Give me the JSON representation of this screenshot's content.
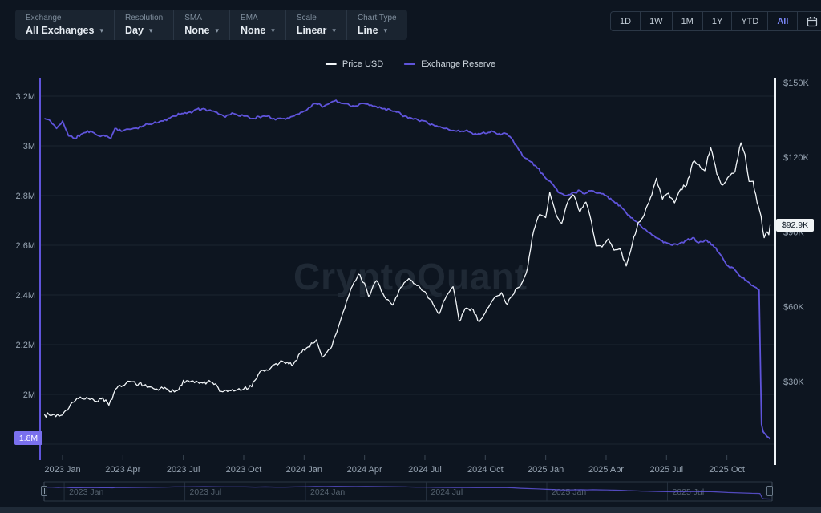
{
  "toolbar": {
    "groups": [
      {
        "label": "Exchange",
        "value": "All Exchanges"
      },
      {
        "label": "Resolution",
        "value": "Day"
      },
      {
        "label": "SMA",
        "value": "None"
      },
      {
        "label": "EMA",
        "value": "None"
      },
      {
        "label": "Scale",
        "value": "Linear"
      },
      {
        "label": "Chart Type",
        "value": "Line"
      }
    ]
  },
  "range_selector": {
    "options": [
      "1D",
      "1W",
      "1M",
      "1Y",
      "YTD",
      "All"
    ],
    "selected": "All",
    "selected_color": "#7b87f7",
    "calendar_icon": "calendar-icon"
  },
  "legend": {
    "items": [
      {
        "label": "Price USD",
        "color": "#f2f6f9"
      },
      {
        "label": "Exchange Reserve",
        "color": "#5f54db"
      }
    ]
  },
  "watermark": {
    "text": "CryptoQuant"
  },
  "badges": {
    "price_current": "$92.9K",
    "reserve_current": "1.8M"
  },
  "colors": {
    "background": "#0d1520",
    "panel": "#1a2430",
    "gridline": "#1b2531",
    "axis_text": "#95a2b0",
    "price_line": "#f2f6f9",
    "reserve_line": "#5f54db",
    "accent_selected": "#7b87f7",
    "price_badge_bg": "#f0f4f6",
    "reserve_badge_bg": "#7a70ee"
  },
  "chart_data": {
    "type": "line",
    "title": "",
    "x_unit": "months_since_2023_Jan",
    "x_ticks": [
      {
        "m": 0,
        "label": "2023 Jan"
      },
      {
        "m": 3,
        "label": "2023 Apr"
      },
      {
        "m": 6,
        "label": "2023 Jul"
      },
      {
        "m": 9,
        "label": "2023 Oct"
      },
      {
        "m": 12,
        "label": "2024 Jan"
      },
      {
        "m": 15,
        "label": "2024 Apr"
      },
      {
        "m": 18,
        "label": "2024 Jul"
      },
      {
        "m": 21,
        "label": "2024 Oct"
      },
      {
        "m": 24,
        "label": "2025 Jan"
      },
      {
        "m": 27,
        "label": "2025 Apr"
      },
      {
        "m": 30,
        "label": "2025 Jul"
      },
      {
        "m": 33,
        "label": "2025 Oct"
      }
    ],
    "left_axis": {
      "name": "Exchange Reserve",
      "unit": "M BTC",
      "range": [
        1.75,
        3.27
      ],
      "grid": [
        3.2,
        3.0,
        2.8,
        2.6,
        2.4,
        2.2,
        2.0,
        1.8
      ],
      "ticks": [
        {
          "v": 3.2,
          "label": "3.2M"
        },
        {
          "v": 3.0,
          "label": "3M"
        },
        {
          "v": 2.8,
          "label": "2.8M"
        },
        {
          "v": 2.6,
          "label": "2.6M"
        },
        {
          "v": 2.4,
          "label": "2.4M"
        },
        {
          "v": 2.2,
          "label": "2.2M"
        },
        {
          "v": 2.0,
          "label": "2M"
        }
      ]
    },
    "right_axis": {
      "name": "Price USD",
      "unit": "$K",
      "range": [
        0,
        152
      ],
      "ticks": [
        {
          "v": 150,
          "label": "$150K"
        },
        {
          "v": 120,
          "label": "$120K"
        },
        {
          "v": 90,
          "label": "$90K"
        },
        {
          "v": 60,
          "label": "$60K"
        },
        {
          "v": 30,
          "label": "$30K"
        }
      ]
    },
    "series": [
      {
        "name": "Exchange Reserve",
        "axis": "left",
        "color": "#5f54db",
        "noise": 0.007,
        "points": [
          [
            -0.9,
            3.11
          ],
          [
            -0.6,
            3.1
          ],
          [
            -0.3,
            3.07
          ],
          [
            0,
            3.1
          ],
          [
            0.3,
            3.04
          ],
          [
            0.6,
            3.03
          ],
          [
            1.0,
            3.05
          ],
          [
            1.4,
            3.06
          ],
          [
            1.8,
            3.04
          ],
          [
            2.2,
            3.04
          ],
          [
            2.4,
            3.03
          ],
          [
            2.6,
            3.07
          ],
          [
            3.0,
            3.06
          ],
          [
            3.5,
            3.07
          ],
          [
            4.0,
            3.08
          ],
          [
            4.5,
            3.09
          ],
          [
            5.0,
            3.1
          ],
          [
            5.5,
            3.12
          ],
          [
            6.0,
            3.13
          ],
          [
            6.5,
            3.14
          ],
          [
            7.0,
            3.15
          ],
          [
            7.5,
            3.14
          ],
          [
            8.0,
            3.12
          ],
          [
            8.5,
            3.13
          ],
          [
            9.0,
            3.12
          ],
          [
            9.5,
            3.11
          ],
          [
            10.0,
            3.12
          ],
          [
            10.5,
            3.11
          ],
          [
            11.0,
            3.11
          ],
          [
            11.5,
            3.12
          ],
          [
            12.0,
            3.14
          ],
          [
            12.5,
            3.17
          ],
          [
            13.0,
            3.16
          ],
          [
            13.5,
            3.18
          ],
          [
            14.0,
            3.17
          ],
          [
            14.5,
            3.16
          ],
          [
            15.0,
            3.17
          ],
          [
            15.5,
            3.16
          ],
          [
            16.0,
            3.15
          ],
          [
            16.5,
            3.14
          ],
          [
            17.0,
            3.12
          ],
          [
            17.5,
            3.11
          ],
          [
            18.0,
            3.1
          ],
          [
            18.5,
            3.08
          ],
          [
            19.0,
            3.07
          ],
          [
            19.5,
            3.06
          ],
          [
            20.0,
            3.06
          ],
          [
            20.5,
            3.05
          ],
          [
            21.0,
            3.05
          ],
          [
            21.3,
            3.06
          ],
          [
            21.7,
            3.05
          ],
          [
            22.0,
            3.05
          ],
          [
            22.3,
            3.03
          ],
          [
            22.7,
            2.98
          ],
          [
            23.0,
            2.95
          ],
          [
            23.5,
            2.92
          ],
          [
            24.0,
            2.87
          ],
          [
            24.3,
            2.85
          ],
          [
            24.7,
            2.81
          ],
          [
            25.0,
            2.8
          ],
          [
            25.3,
            2.81
          ],
          [
            25.7,
            2.82
          ],
          [
            26.0,
            2.81
          ],
          [
            26.3,
            2.82
          ],
          [
            26.7,
            2.81
          ],
          [
            27.0,
            2.8
          ],
          [
            27.3,
            2.78
          ],
          [
            27.7,
            2.76
          ],
          [
            28.0,
            2.73
          ],
          [
            28.3,
            2.71
          ],
          [
            28.7,
            2.68
          ],
          [
            29.0,
            2.66
          ],
          [
            29.3,
            2.64
          ],
          [
            29.7,
            2.62
          ],
          [
            30.0,
            2.61
          ],
          [
            30.3,
            2.6
          ],
          [
            30.7,
            2.61
          ],
          [
            31.0,
            2.62
          ],
          [
            31.3,
            2.63
          ],
          [
            31.6,
            2.61
          ],
          [
            32.0,
            2.62
          ],
          [
            32.3,
            2.6
          ],
          [
            32.6,
            2.57
          ],
          [
            33.0,
            2.52
          ],
          [
            33.3,
            2.51
          ],
          [
            33.6,
            2.48
          ],
          [
            33.9,
            2.46
          ],
          [
            34.2,
            2.44
          ],
          [
            34.45,
            2.43
          ],
          [
            34.6,
            2.42
          ],
          [
            34.68,
            2.05
          ],
          [
            34.72,
            1.88
          ],
          [
            34.8,
            1.85
          ],
          [
            34.9,
            1.84
          ],
          [
            35.0,
            1.83
          ],
          [
            35.15,
            1.82
          ]
        ]
      },
      {
        "name": "Price USD",
        "axis": "right",
        "color": "#f2f6f9",
        "noise": 1.1,
        "points": [
          [
            -0.9,
            16.8
          ],
          [
            -0.5,
            16.6
          ],
          [
            0,
            16.6
          ],
          [
            0.4,
            20.9
          ],
          [
            0.8,
            23.1
          ],
          [
            1.2,
            23.7
          ],
          [
            1.6,
            22.1
          ],
          [
            2.0,
            23.5
          ],
          [
            2.3,
            20.5
          ],
          [
            2.7,
            27.4
          ],
          [
            3.0,
            28.4
          ],
          [
            3.4,
            30.0
          ],
          [
            3.8,
            29.2
          ],
          [
            4.2,
            27.7
          ],
          [
            4.6,
            26.9
          ],
          [
            5.0,
            27.2
          ],
          [
            5.4,
            25.9
          ],
          [
            5.7,
            26.4
          ],
          [
            6.0,
            30.5
          ],
          [
            6.4,
            30.2
          ],
          [
            6.8,
            29.3
          ],
          [
            7.2,
            29.9
          ],
          [
            7.6,
            29.1
          ],
          [
            7.8,
            26.1
          ],
          [
            8.2,
            26.0
          ],
          [
            8.6,
            26.5
          ],
          [
            9.0,
            27.0
          ],
          [
            9.4,
            27.9
          ],
          [
            9.8,
            33.9
          ],
          [
            10.2,
            34.5
          ],
          [
            10.6,
            37.2
          ],
          [
            11.0,
            37.8
          ],
          [
            11.4,
            36.3
          ],
          [
            11.8,
            41.5
          ],
          [
            12.2,
            43.9
          ],
          [
            12.6,
            46.7
          ],
          [
            12.9,
            39.7
          ],
          [
            13.3,
            43.0
          ],
          [
            13.7,
            51.9
          ],
          [
            14.1,
            62.1
          ],
          [
            14.4,
            68.4
          ],
          [
            14.7,
            73.1
          ],
          [
            15.0,
            69.5
          ],
          [
            15.2,
            64.2
          ],
          [
            15.6,
            70.5
          ],
          [
            16.0,
            63.9
          ],
          [
            16.4,
            60.7
          ],
          [
            16.8,
            67.8
          ],
          [
            17.2,
            71.3
          ],
          [
            17.6,
            68.5
          ],
          [
            18.0,
            66.1
          ],
          [
            18.4,
            61.1
          ],
          [
            18.7,
            57.1
          ],
          [
            19.0,
            63.1
          ],
          [
            19.4,
            68.1
          ],
          [
            19.7,
            54.2
          ],
          [
            20.0,
            59.3
          ],
          [
            20.4,
            58.8
          ],
          [
            20.7,
            54.0
          ],
          [
            21.0,
            57.6
          ],
          [
            21.4,
            63.1
          ],
          [
            21.8,
            65.7
          ],
          [
            22.1,
            60.9
          ],
          [
            22.5,
            67.1
          ],
          [
            22.8,
            69.3
          ],
          [
            23.1,
            75.5
          ],
          [
            23.4,
            90.4
          ],
          [
            23.7,
            97.1
          ],
          [
            24.0,
            95.8
          ],
          [
            24.2,
            106.0
          ],
          [
            24.5,
            97.4
          ],
          [
            24.8,
            93.5
          ],
          [
            25.1,
            102.2
          ],
          [
            25.4,
            104.7
          ],
          [
            25.7,
            98.0
          ],
          [
            26.0,
            102.0
          ],
          [
            26.2,
            96.5
          ],
          [
            26.5,
            84.4
          ],
          [
            26.8,
            84.0
          ],
          [
            27.1,
            87.2
          ],
          [
            27.4,
            82.7
          ],
          [
            27.7,
            83.3
          ],
          [
            28.0,
            76.4
          ],
          [
            28.3,
            85.1
          ],
          [
            28.6,
            93.9
          ],
          [
            28.9,
            97.1
          ],
          [
            29.2,
            103.7
          ],
          [
            29.5,
            111.6
          ],
          [
            29.8,
            103.2
          ],
          [
            30.1,
            105.6
          ],
          [
            30.4,
            101.7
          ],
          [
            30.7,
            107.2
          ],
          [
            31.0,
            108.8
          ],
          [
            31.3,
            117.9
          ],
          [
            31.6,
            117.3
          ],
          [
            31.9,
            114.6
          ],
          [
            32.2,
            123.8
          ],
          [
            32.5,
            113.3
          ],
          [
            32.8,
            108.9
          ],
          [
            33.1,
            112.4
          ],
          [
            33.4,
            114.2
          ],
          [
            33.7,
            125.8
          ],
          [
            33.9,
            121.1
          ],
          [
            34.1,
            110.3
          ],
          [
            34.3,
            110.4
          ],
          [
            34.5,
            101.8
          ],
          [
            34.7,
            96.3
          ],
          [
            34.85,
            87.7
          ],
          [
            35.0,
            90.1
          ],
          [
            35.08,
            88.9
          ],
          [
            35.15,
            92.9
          ]
        ]
      }
    ],
    "navigator": {
      "series": "Exchange Reserve",
      "labels": [
        {
          "m": 0,
          "label": "2023 Jan"
        },
        {
          "m": 6,
          "label": "2023 Jul"
        },
        {
          "m": 12,
          "label": "2024 Jan"
        },
        {
          "m": 18,
          "label": "2024 Jul"
        },
        {
          "m": 24,
          "label": "2025 Jan"
        },
        {
          "m": 30,
          "label": "2025 Jul"
        }
      ]
    },
    "legend_position": "top-center",
    "grid": "horizontal-only"
  }
}
